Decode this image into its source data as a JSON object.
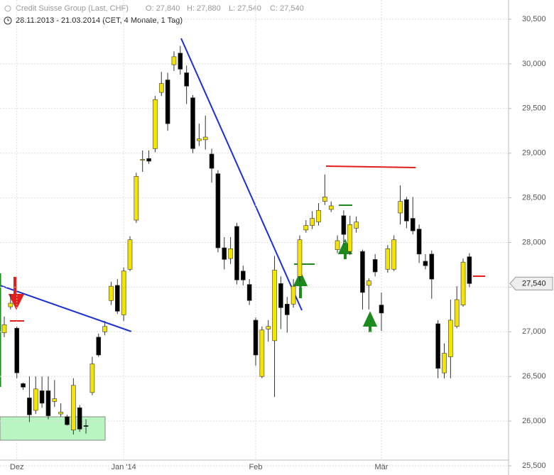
{
  "chart_data": {
    "type": "candlestick",
    "title": "Credit Suisse Group (Last, CHF)",
    "header_fields": [
      "O: 27,840",
      "H: 27,880",
      "L: 27,540",
      "C: 27,540"
    ],
    "subtitle": "28.11.2013 - 21.03.2014 (CET, 4 Monate, 1 Tag)",
    "categories": [
      null,
      null,
      "Dez",
      null,
      null,
      null,
      null,
      null,
      null,
      null,
      null,
      null,
      null,
      null,
      null,
      null,
      null,
      null,
      null,
      "Jan '14",
      null,
      null,
      null,
      null,
      null,
      null,
      null,
      null,
      null,
      null,
      null,
      null,
      null,
      null,
      null,
      null,
      null,
      null,
      null,
      null,
      "Feb",
      null,
      null,
      null,
      null,
      null,
      null,
      null,
      null,
      null,
      null,
      null,
      null,
      null,
      null,
      null,
      null,
      null,
      null,
      null,
      "Mär",
      null,
      null,
      null,
      null,
      null,
      null,
      null,
      null,
      null,
      null,
      null,
      null,
      null,
      null
    ],
    "open": [
      26990,
      27280,
      27040,
      26420,
      26260,
      26120,
      26340,
      26340,
      26220,
      26080,
      26050,
      25900,
      26150,
      25950,
      26320,
      26940,
      27000,
      27350,
      27520,
      27190,
      27700,
      28250,
      28920,
      28940,
      29050,
      29680,
      29820,
      29990,
      30120,
      29900,
      29620,
      29140,
      29150,
      28990,
      28770,
      27940,
      27820,
      28180,
      27680,
      27530,
      27130,
      26500,
      27030,
      26900,
      27540,
      27310,
      27310,
      27620,
      28140,
      28190,
      28230,
      28460,
      28370,
      27920,
      28300,
      27900,
      28160,
      27900,
      27520,
      27810,
      27300,
      27700,
      27700,
      28330,
      28480,
      28270,
      28150,
      27790,
      27870,
      27090,
      26540,
      26720,
      27060,
      27300,
      27840
    ],
    "high": [
      27170,
      27420,
      27060,
      26430,
      26500,
      26500,
      26500,
      26500,
      26460,
      26200,
      26070,
      26480,
      26180,
      26020,
      26720,
      26980,
      27120,
      27560,
      27590,
      27720,
      28070,
      28780,
      29030,
      29030,
      29640,
      29910,
      29900,
      30140,
      30200,
      29980,
      29650,
      29330,
      29420,
      29050,
      28810,
      28060,
      28060,
      28220,
      27740,
      27590,
      27160,
      27060,
      27130,
      27850,
      27620,
      27390,
      27590,
      28080,
      28250,
      28350,
      28440,
      28760,
      28460,
      28080,
      28360,
      28300,
      28290,
      27920,
      27600,
      27870,
      27440,
      27970,
      28080,
      28640,
      28510,
      28510,
      28200,
      27870,
      27910,
      27130,
      26870,
      27360,
      27510,
      27820,
      27880
    ],
    "low": [
      26940,
      27250,
      26480,
      26350,
      25990,
      26080,
      26150,
      26020,
      26160,
      26050,
      25950,
      25850,
      25880,
      25860,
      26290,
      26720,
      26960,
      27300,
      27200,
      27120,
      27680,
      28220,
      28790,
      28880,
      29010,
      29640,
      29250,
      29920,
      29880,
      29550,
      29000,
      29080,
      29040,
      28670,
      27890,
      27700,
      27760,
      27530,
      27520,
      27300,
      26620,
      26480,
      26890,
      26270,
      27030,
      26990,
      27270,
      27560,
      28110,
      28150,
      28190,
      28420,
      28340,
      27880,
      27980,
      27860,
      28110,
      27250,
      27250,
      27620,
      27010,
      27660,
      27680,
      28200,
      28160,
      28090,
      27770,
      27700,
      27370,
      26480,
      26480,
      26480,
      27040,
      27280,
      27500
    ],
    "close": [
      27080,
      27320,
      26540,
      26380,
      26070,
      26360,
      26200,
      26060,
      26250,
      26100,
      25960,
      26400,
      25910,
      25940,
      26640,
      26740,
      27060,
      27510,
      27230,
      27680,
      28030,
      28740,
      28930,
      28910,
      29600,
      29780,
      29330,
      30080,
      29940,
      29750,
      29050,
      29160,
      29180,
      28830,
      27940,
      27810,
      27930,
      27580,
      27580,
      27350,
      26740,
      27020,
      27060,
      27690,
      27270,
      27190,
      27510,
      28030,
      28190,
      28270,
      28360,
      28510,
      28410,
      28020,
      28090,
      28200,
      28230,
      27440,
      27570,
      27670,
      27210,
      27930,
      28030,
      28460,
      28240,
      28130,
      27870,
      27740,
      27590,
      26590,
      26760,
      27130,
      27360,
      27780,
      27540
    ],
    "up_color": "#f5e400",
    "down_color": "#000000",
    "current_price": {
      "value": 27540,
      "label": "27,540"
    },
    "ylim": [
      25500,
      30500
    ],
    "yticks": [
      {
        "value": 25500,
        "label": "25,500"
      },
      {
        "value": 26000,
        "label": "26,000"
      },
      {
        "value": 26500,
        "label": "26,500"
      },
      {
        "value": 27000,
        "label": "27,000"
      },
      {
        "value": 27500,
        "label": "27,500"
      },
      {
        "value": 28000,
        "label": "28,000"
      },
      {
        "value": 28500,
        "label": "28,500"
      },
      {
        "value": 29000,
        "label": "29,000"
      },
      {
        "value": 29500,
        "label": "29,500"
      },
      {
        "value": 30000,
        "label": "30,000"
      },
      {
        "value": 30500,
        "label": "30,500"
      }
    ],
    "grid": true
  }
}
